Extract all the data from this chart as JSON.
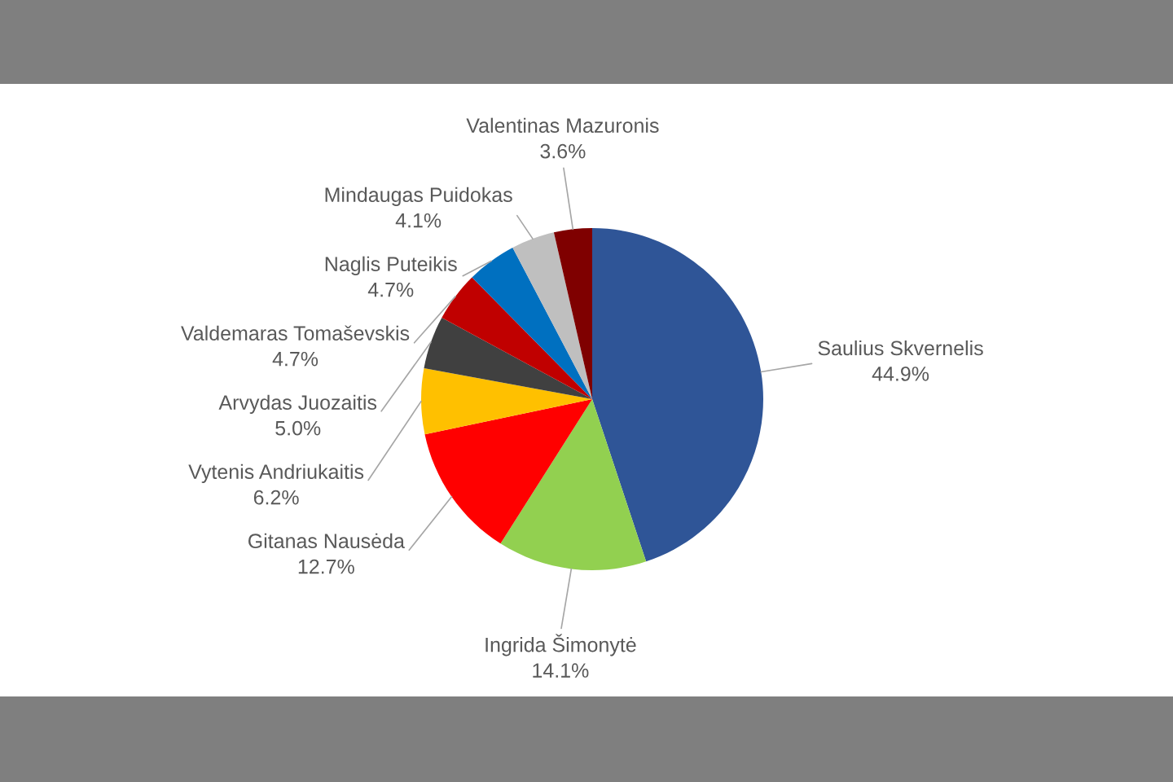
{
  "chart_data": {
    "type": "pie",
    "categories": [
      "Saulius Skvernelis",
      "Ingrida Šimonytė",
      "Gitanas Nausėda",
      "Vytenis Andriukaitis",
      "Arvydas Juozaitis",
      "Valdemaras Tomaševskis",
      "Naglis Puteikis",
      "Mindaugas Puidokas",
      "Valentinas Mazuronis"
    ],
    "values": [
      44.9,
      14.1,
      12.7,
      6.2,
      5.0,
      4.7,
      4.7,
      4.1,
      3.6
    ],
    "colors": [
      "#2f5597",
      "#92d050",
      "#ff0000",
      "#ffc000",
      "#404040",
      "#c00000",
      "#0070c0",
      "#bfbfbf",
      "#7f0000"
    ],
    "value_labels": [
      "44.9%",
      "14.1%",
      "12.7%",
      "6.2%",
      "5.0%",
      "4.7%",
      "4.7%",
      "4.1%",
      "3.6%"
    ]
  }
}
